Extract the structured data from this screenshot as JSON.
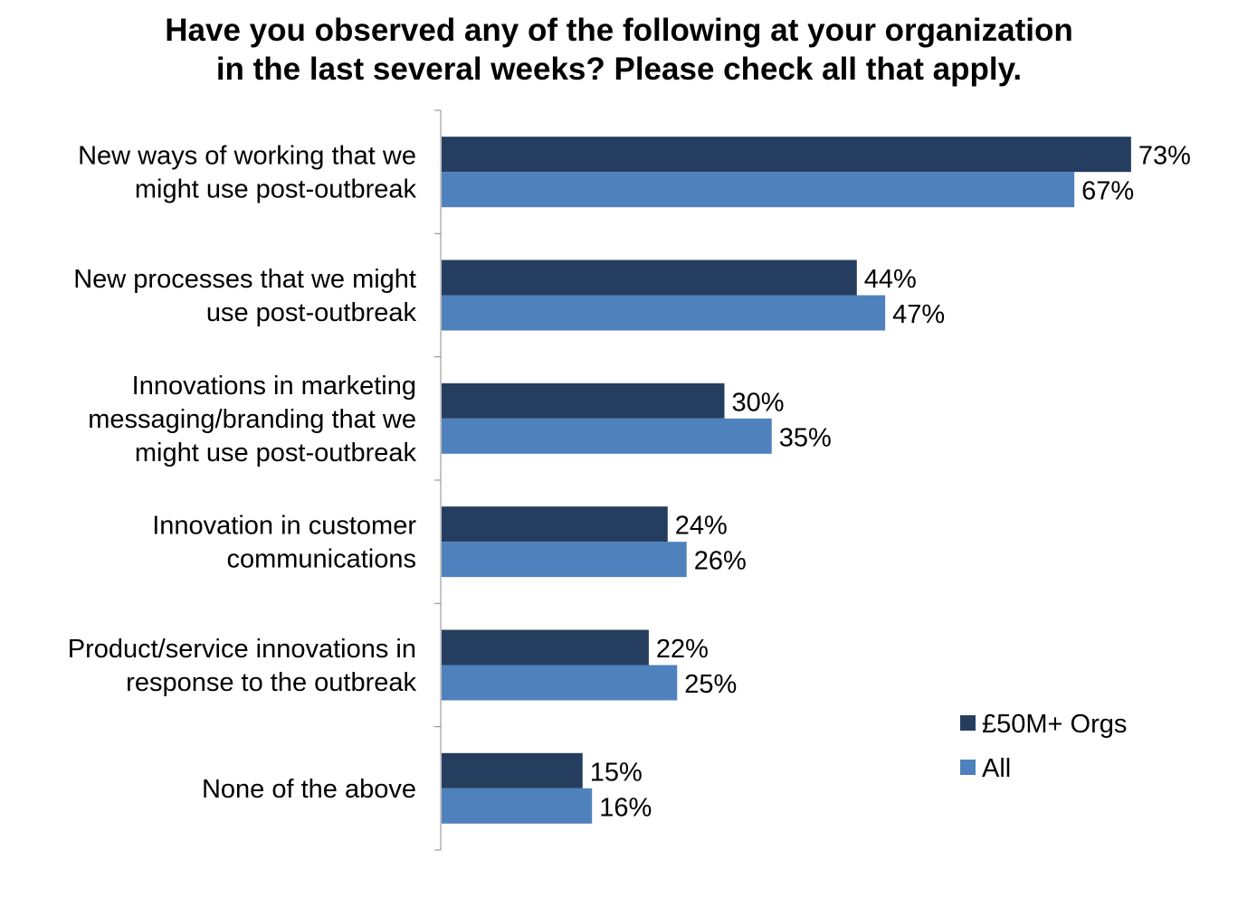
{
  "chart_data": {
    "type": "bar",
    "orientation": "horizontal",
    "title": [
      "Have you observed any of the following at your organization",
      "in the last several weeks? Please check all that apply."
    ],
    "categories": [
      [
        "New ways of working that we",
        "might use post-outbreak"
      ],
      [
        "New processes that we might",
        "use post-outbreak"
      ],
      [
        "Innovations in marketing",
        "messaging/branding that we",
        "might use post-outbreak"
      ],
      [
        "Innovation in customer",
        "communications"
      ],
      [
        "Product/service innovations in",
        "response to the outbreak"
      ],
      [
        "None of the above"
      ]
    ],
    "series": [
      {
        "name": "£50M+ Orgs",
        "color": "#253E5F",
        "values": [
          73,
          44,
          30,
          24,
          22,
          15
        ]
      },
      {
        "name": "All",
        "color": "#4F81BD",
        "values": [
          67,
          47,
          35,
          26,
          25,
          16
        ]
      }
    ],
    "value_suffix": "%",
    "xlim": [
      0,
      100
    ],
    "xlabel": "",
    "ylabel": "",
    "grid": false,
    "legend": "bottom-right"
  }
}
